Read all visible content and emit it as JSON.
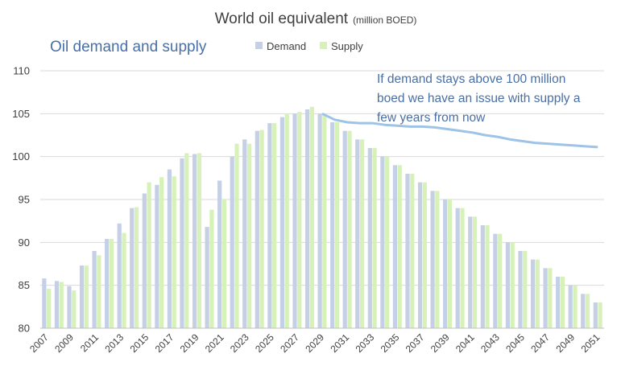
{
  "chart_data": {
    "type": "bar",
    "title": "World oil equivalent",
    "title_unit": "(million BOED)",
    "subtitle": "Oil demand and supply",
    "annotation": [
      "If demand stays above 100 million",
      "boed we have an issue with supply a",
      "few years from now"
    ],
    "xlabel": "",
    "ylabel": "",
    "ylim": [
      80,
      110
    ],
    "yticks": [
      80,
      85,
      90,
      95,
      100,
      105,
      110
    ],
    "grid": true,
    "legend_position": "top",
    "categories": [
      "2007",
      "2008",
      "2009",
      "2010",
      "2011",
      "2012",
      "2013",
      "2014",
      "2015",
      "2016",
      "2017",
      "2018",
      "2019",
      "2020",
      "2021",
      "2022",
      "2023",
      "2024",
      "2025",
      "2026",
      "2027",
      "2028",
      "2029",
      "2030",
      "2031",
      "2032",
      "2033",
      "2034",
      "2035",
      "2036",
      "2037",
      "2038",
      "2039",
      "2040",
      "2041",
      "2042",
      "2043",
      "2044",
      "2045",
      "2046",
      "2047",
      "2048",
      "2049",
      "2050",
      "2051"
    ],
    "xtick_labels": [
      "2007",
      "2009",
      "2011",
      "2013",
      "2015",
      "2017",
      "2019",
      "2021",
      "2023",
      "2025",
      "2027",
      "2029",
      "2031",
      "2033",
      "2035",
      "2037",
      "2039",
      "2041",
      "2043",
      "2045",
      "2047",
      "2049",
      "2051"
    ],
    "series": [
      {
        "name": "Demand",
        "color": "#c5cfe6",
        "values": [
          85.8,
          85.5,
          84.9,
          87.3,
          89.0,
          90.4,
          92.2,
          94.0,
          95.7,
          96.7,
          98.5,
          99.8,
          100.3,
          91.8,
          97.2,
          100.0,
          102.0,
          103.0,
          103.9,
          104.6,
          105.0,
          105.5,
          105.0,
          104.0,
          103.0,
          102.0,
          101.0,
          100.0,
          99.0,
          98.0,
          97.0,
          96.0,
          95.0,
          94.0,
          93.0,
          92.0,
          91.0,
          90.0,
          89.0,
          88.0,
          87.0,
          86.0,
          85.0,
          84.0,
          83.0
        ]
      },
      {
        "name": "Supply",
        "color": "#d6f2b8",
        "values": [
          84.6,
          85.4,
          84.4,
          87.3,
          88.5,
          90.4,
          91.1,
          94.1,
          97.0,
          97.6,
          97.7,
          100.4,
          100.4,
          93.8,
          95.0,
          101.5,
          101.5,
          103.1,
          103.9,
          105.0,
          105.2,
          105.8,
          105.0,
          104.0,
          103.0,
          102.0,
          101.0,
          100.0,
          99.0,
          98.0,
          97.0,
          96.0,
          95.0,
          94.0,
          93.0,
          92.0,
          91.0,
          90.0,
          89.0,
          88.0,
          87.0,
          86.0,
          85.0,
          84.0,
          83.0
        ]
      }
    ],
    "trend_line": {
      "color": "#9dc3e6",
      "x": [
        "2029",
        "2030",
        "2031",
        "2032",
        "2033",
        "2034",
        "2035",
        "2036",
        "2037",
        "2038",
        "2039",
        "2040",
        "2041",
        "2042",
        "2043",
        "2044",
        "2045",
        "2046",
        "2047",
        "2048",
        "2049",
        "2050",
        "2051"
      ],
      "values": [
        105.0,
        104.3,
        104.0,
        103.9,
        103.9,
        103.7,
        103.6,
        103.5,
        103.5,
        103.4,
        103.2,
        103.0,
        102.8,
        102.5,
        102.3,
        102.0,
        101.8,
        101.6,
        101.5,
        101.4,
        101.3,
        101.2,
        101.1
      ]
    }
  }
}
